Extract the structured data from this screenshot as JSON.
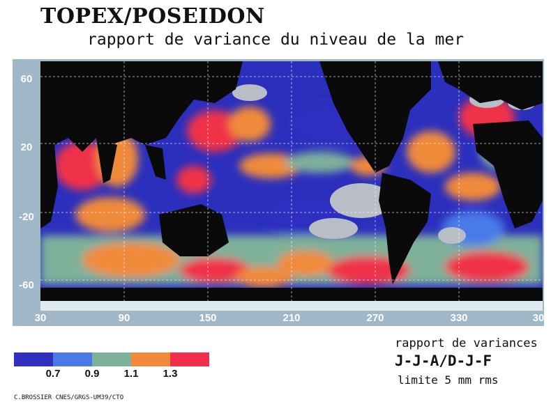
{
  "title": "TOPEX/POSEIDON",
  "subtitle": "rapport de variance du niveau de la mer",
  "map": {
    "lat_ticks": [
      "60",
      "20",
      "-20",
      "-60"
    ],
    "lon_ticks": [
      "30",
      "90",
      "150",
      "210",
      "270",
      "330",
      "30"
    ]
  },
  "legend": {
    "colors": [
      "#2f2fc0",
      "#4a7ae8",
      "#7fb09a",
      "#f08a3a",
      "#f0304a"
    ],
    "ticks": [
      "0.7",
      "0.9",
      "1.1",
      "1.3"
    ]
  },
  "info": {
    "line1": "rapport de variances",
    "line2": "J-J-A/D-J-F",
    "line3": "limite 5 mm rms"
  },
  "credit": "C.BROSSIER  CNES/GRGS-UM39/CTO"
}
